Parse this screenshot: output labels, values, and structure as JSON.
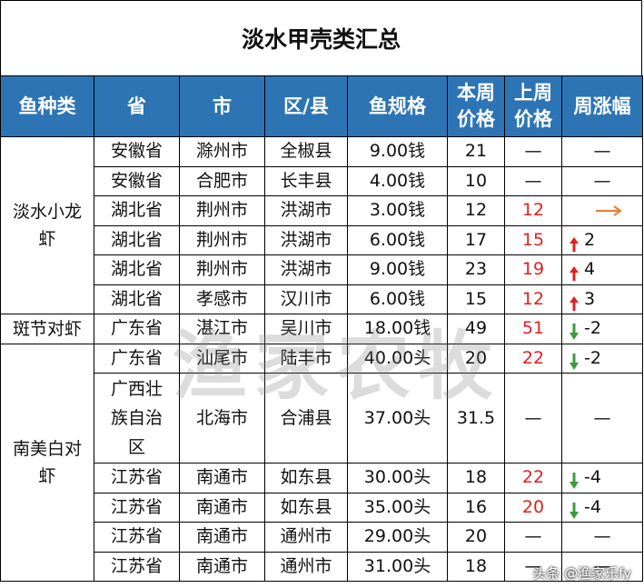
{
  "title": "淡水甲壳类汇总",
  "headers": {
    "species": "鱼种类",
    "province": "省",
    "city": "市",
    "district": "区/县",
    "spec": "鱼规格",
    "this_week_1": "本周",
    "this_week_2": "价格",
    "last_week_1": "上周",
    "last_week_2": "价格",
    "change": "周涨幅"
  },
  "groups": {
    "crayfish_1": "淡水小龙",
    "crayfish_2": "虾",
    "tiger": "斑节对虾",
    "whiteleg_1": "南美白对",
    "whiteleg_2": "虾"
  },
  "rows": [
    {
      "province": "安徽省",
      "city": "滁州市",
      "district": "全椒县",
      "spec": "9.00钱",
      "price": "21",
      "last": "—",
      "change": "—"
    },
    {
      "province": "安徽省",
      "city": "合肥市",
      "district": "长丰县",
      "spec": "4.00钱",
      "price": "10",
      "last": "—",
      "change": "—"
    },
    {
      "province": "湖北省",
      "city": "荆州市",
      "district": "洪湖市",
      "spec": "3.00钱",
      "price": "12",
      "last": "12",
      "change": ""
    },
    {
      "province": "湖北省",
      "city": "荆州市",
      "district": "洪湖市",
      "spec": "6.00钱",
      "price": "17",
      "last": "15",
      "change": "2"
    },
    {
      "province": "湖北省",
      "city": "荆州市",
      "district": "洪湖市",
      "spec": "9.00钱",
      "price": "23",
      "last": "19",
      "change": "4"
    },
    {
      "province": "湖北省",
      "city": "孝感市",
      "district": "汉川市",
      "spec": "6.00钱",
      "price": "15",
      "last": "12",
      "change": "3"
    },
    {
      "province": "广东省",
      "city": "湛江市",
      "district": "吴川市",
      "spec": "18.00钱",
      "price": "49",
      "last": "51",
      "change": "-2"
    },
    {
      "province": "广东省",
      "city": "汕尾市",
      "district": "陆丰市",
      "spec": "40.00头",
      "price": "20",
      "last": "22",
      "change": "-2"
    },
    {
      "province_1": "广西壮",
      "province_2": "族自治",
      "province_3": "区",
      "city": "北海市",
      "district": "合浦县",
      "spec": "37.00头",
      "price": "31.5",
      "last": "—",
      "change": "—"
    },
    {
      "province": "江苏省",
      "city": "南通市",
      "district": "如东县",
      "spec": "30.00头",
      "price": "18",
      "last": "22",
      "change": "-4"
    },
    {
      "province": "江苏省",
      "city": "南通市",
      "district": "如东县",
      "spec": "35.00头",
      "price": "16",
      "last": "20",
      "change": "-4"
    },
    {
      "province": "江苏省",
      "city": "南通市",
      "district": "通州市",
      "spec": "29.00头",
      "price": "20",
      "last": "—",
      "change": "—"
    },
    {
      "province": "江苏省",
      "city": "南通市",
      "district": "通州市",
      "spec": "31.00头",
      "price": "18",
      "last": "—",
      "change": "—"
    }
  ],
  "watermark": "渔家农牧",
  "signature": "头条 @渔家乐fy",
  "colors": {
    "header_bg": "#2d74b5",
    "up": "#e02020",
    "down": "#3c9a3c",
    "flat": "#ed7d31"
  }
}
